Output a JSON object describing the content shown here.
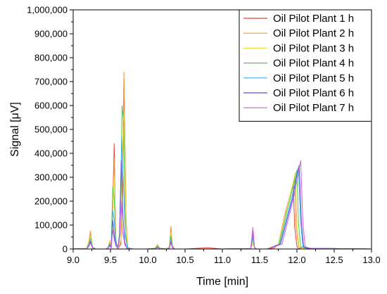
{
  "chart_data": {
    "type": "line",
    "title": "",
    "xlabel": "Time [min]",
    "ylabel": "Signal [μV]",
    "xlim": [
      9.0,
      13.0
    ],
    "ylim": [
      0,
      1000000
    ],
    "x_ticks": [
      9.0,
      9.5,
      10.0,
      10.5,
      11.0,
      11.5,
      12.0,
      12.5,
      13.0
    ],
    "x_tick_labels": [
      "9.0",
      "9.5",
      "10.0",
      "10.5",
      "11.0",
      "11.5",
      "12.0",
      "12.5",
      "13.0"
    ],
    "y_ticks": [
      0,
      100000,
      200000,
      300000,
      400000,
      500000,
      600000,
      700000,
      800000,
      900000,
      1000000
    ],
    "y_tick_labels": [
      "0",
      "100,000",
      "200,000",
      "300,000",
      "400,000",
      "500,000",
      "600,000",
      "700,000",
      "800,000",
      "900,000",
      "1,000,000"
    ],
    "grid": false,
    "legend_position": "top-right",
    "series": [
      {
        "name": "Oil Pilot Plant 1 h",
        "color": "#e8413c",
        "x": [
          9.0,
          9.18,
          9.21,
          9.23,
          9.26,
          9.3,
          9.44,
          9.47,
          9.49,
          9.51,
          9.53,
          9.55,
          9.57,
          9.6,
          9.64,
          9.66,
          9.68,
          9.71,
          9.73,
          9.8,
          10.0,
          10.1,
          10.13,
          10.16,
          10.25,
          10.29,
          10.31,
          10.33,
          10.36,
          10.5,
          10.8,
          11.0,
          11.2,
          11.38,
          11.41,
          11.43,
          11.46,
          11.6,
          11.7,
          11.75,
          11.85,
          11.92,
          11.95,
          11.97,
          12.0,
          12.02,
          12.1,
          12.2,
          12.4,
          13.0
        ],
        "y": [
          0,
          2000,
          30000,
          70000,
          8000,
          0,
          0,
          8000,
          30000,
          8000,
          180000,
          440000,
          40000,
          2000,
          20000,
          220000,
          710000,
          120000,
          5000,
          0,
          0,
          2000,
          15000,
          2000,
          0,
          8000,
          90000,
          15000,
          0,
          0,
          5000,
          0,
          0,
          2000,
          30000,
          8000,
          0,
          0,
          5000,
          20000,
          160000,
          240000,
          270000,
          90000,
          10000,
          2000,
          8000,
          2000,
          0,
          0
        ]
      },
      {
        "name": "Oil Pilot Plant 2 h",
        "color": "#f5963c",
        "x": [
          9.0,
          9.18,
          9.21,
          9.23,
          9.26,
          9.3,
          9.44,
          9.47,
          9.49,
          9.51,
          9.53,
          9.55,
          9.57,
          9.6,
          9.64,
          9.66,
          9.68,
          9.71,
          9.73,
          9.8,
          10.0,
          10.1,
          10.13,
          10.16,
          10.25,
          10.29,
          10.31,
          10.33,
          10.36,
          10.5,
          11.0,
          11.38,
          11.41,
          11.43,
          11.46,
          11.6,
          11.75,
          11.87,
          11.94,
          11.97,
          11.99,
          12.02,
          12.1,
          13.0
        ],
        "y": [
          0,
          2000,
          30000,
          75000,
          8000,
          0,
          0,
          8000,
          35000,
          8000,
          160000,
          380000,
          40000,
          2000,
          30000,
          300000,
          740000,
          110000,
          5000,
          0,
          0,
          3000,
          20000,
          3000,
          0,
          8000,
          95000,
          15000,
          0,
          0,
          0,
          2000,
          25000,
          6000,
          0,
          0,
          20000,
          180000,
          260000,
          300000,
          90000,
          10000,
          3000,
          0
        ]
      },
      {
        "name": "Oil Pilot Plant 3 h",
        "color": "#f2e040",
        "x": [
          9.0,
          9.18,
          9.21,
          9.23,
          9.26,
          9.3,
          9.44,
          9.47,
          9.49,
          9.51,
          9.53,
          9.55,
          9.57,
          9.6,
          9.64,
          9.66,
          9.68,
          9.71,
          9.73,
          9.8,
          10.0,
          10.1,
          10.13,
          10.16,
          10.25,
          10.29,
          10.31,
          10.33,
          10.36,
          10.5,
          11.0,
          11.38,
          11.41,
          11.43,
          11.46,
          11.6,
          11.75,
          11.88,
          11.95,
          11.98,
          12.0,
          12.03,
          12.1,
          13.0
        ],
        "y": [
          0,
          2000,
          25000,
          55000,
          8000,
          0,
          0,
          8000,
          30000,
          8000,
          200000,
          300000,
          40000,
          2000,
          40000,
          400000,
          560000,
          90000,
          5000,
          0,
          0,
          3000,
          18000,
          3000,
          0,
          8000,
          70000,
          12000,
          0,
          0,
          0,
          2000,
          30000,
          6000,
          0,
          0,
          20000,
          190000,
          280000,
          320000,
          100000,
          10000,
          3000,
          0
        ]
      },
      {
        "name": "Oil Pilot Plant 4 h",
        "color": "#4ccd4c",
        "x": [
          9.0,
          9.18,
          9.21,
          9.23,
          9.26,
          9.3,
          9.44,
          9.47,
          9.49,
          9.51,
          9.53,
          9.55,
          9.57,
          9.6,
          9.63,
          9.655,
          9.675,
          9.7,
          9.73,
          9.8,
          10.0,
          10.1,
          10.13,
          10.16,
          10.25,
          10.29,
          10.31,
          10.33,
          10.36,
          10.5,
          11.0,
          11.38,
          11.41,
          11.43,
          11.46,
          11.6,
          11.76,
          11.9,
          11.97,
          12.0,
          12.02,
          12.05,
          12.12,
          13.0
        ],
        "y": [
          0,
          2000,
          20000,
          45000,
          6000,
          0,
          0,
          6000,
          25000,
          6000,
          260000,
          210000,
          40000,
          2000,
          60000,
          600000,
          530000,
          70000,
          5000,
          0,
          0,
          3000,
          12000,
          3000,
          0,
          6000,
          55000,
          10000,
          0,
          0,
          0,
          2000,
          45000,
          6000,
          0,
          0,
          20000,
          200000,
          290000,
          330000,
          110000,
          10000,
          3000,
          0
        ]
      },
      {
        "name": "Oil Pilot Plant 5 h",
        "color": "#3fb0e8",
        "x": [
          9.0,
          9.18,
          9.21,
          9.23,
          9.26,
          9.3,
          9.44,
          9.47,
          9.49,
          9.51,
          9.53,
          9.55,
          9.57,
          9.6,
          9.63,
          9.65,
          9.67,
          9.7,
          9.73,
          9.8,
          10.0,
          10.1,
          10.13,
          10.16,
          10.25,
          10.29,
          10.31,
          10.33,
          10.36,
          10.5,
          11.0,
          11.38,
          11.41,
          11.43,
          11.46,
          11.6,
          11.77,
          11.92,
          11.99,
          12.02,
          12.05,
          12.08,
          12.14,
          13.0
        ],
        "y": [
          0,
          2000,
          15000,
          35000,
          5000,
          0,
          0,
          5000,
          20000,
          5000,
          160000,
          120000,
          30000,
          2000,
          80000,
          470000,
          300000,
          50000,
          4000,
          0,
          0,
          2000,
          10000,
          2000,
          0,
          5000,
          40000,
          8000,
          0,
          0,
          0,
          2000,
          60000,
          6000,
          0,
          0,
          20000,
          200000,
          300000,
          340000,
          110000,
          10000,
          3000,
          0
        ]
      },
      {
        "name": "Oil Pilot Plant 6 h",
        "color": "#5c4ee0",
        "x": [
          9.0,
          9.18,
          9.21,
          9.23,
          9.26,
          9.3,
          9.44,
          9.47,
          9.49,
          9.51,
          9.53,
          9.55,
          9.57,
          9.6,
          9.62,
          9.645,
          9.665,
          9.69,
          9.72,
          9.8,
          10.0,
          10.1,
          10.13,
          10.16,
          10.25,
          10.29,
          10.31,
          10.33,
          10.36,
          10.5,
          11.0,
          11.38,
          11.41,
          11.43,
          11.46,
          11.6,
          11.78,
          11.94,
          12.0,
          12.03,
          12.06,
          12.09,
          12.15,
          13.0
        ],
        "y": [
          0,
          2000,
          12000,
          30000,
          5000,
          0,
          0,
          5000,
          15000,
          5000,
          120000,
          60000,
          20000,
          2000,
          60000,
          370000,
          150000,
          30000,
          4000,
          0,
          0,
          2000,
          8000,
          2000,
          0,
          4000,
          30000,
          6000,
          0,
          0,
          0,
          2000,
          80000,
          6000,
          0,
          0,
          20000,
          210000,
          310000,
          350000,
          110000,
          10000,
          3000,
          0
        ]
      },
      {
        "name": "Oil Pilot Plant 7 h",
        "color": "#d65ce0",
        "x": [
          9.0,
          9.18,
          9.21,
          9.23,
          9.26,
          9.3,
          9.44,
          9.47,
          9.49,
          9.51,
          9.53,
          9.55,
          9.57,
          9.6,
          9.62,
          9.64,
          9.66,
          9.69,
          9.72,
          9.8,
          10.0,
          10.1,
          10.13,
          10.16,
          10.25,
          10.29,
          10.31,
          10.33,
          10.36,
          10.5,
          11.0,
          11.38,
          11.41,
          11.43,
          11.46,
          11.6,
          11.8,
          11.96,
          12.02,
          12.05,
          12.08,
          12.11,
          12.17,
          13.0
        ],
        "y": [
          0,
          2000,
          10000,
          25000,
          4000,
          0,
          0,
          4000,
          12000,
          4000,
          80000,
          40000,
          15000,
          2000,
          40000,
          200000,
          80000,
          20000,
          3000,
          0,
          0,
          2000,
          6000,
          2000,
          0,
          3000,
          25000,
          5000,
          0,
          0,
          0,
          2000,
          90000,
          6000,
          0,
          0,
          20000,
          220000,
          320000,
          370000,
          110000,
          10000,
          3000,
          0
        ]
      }
    ]
  }
}
